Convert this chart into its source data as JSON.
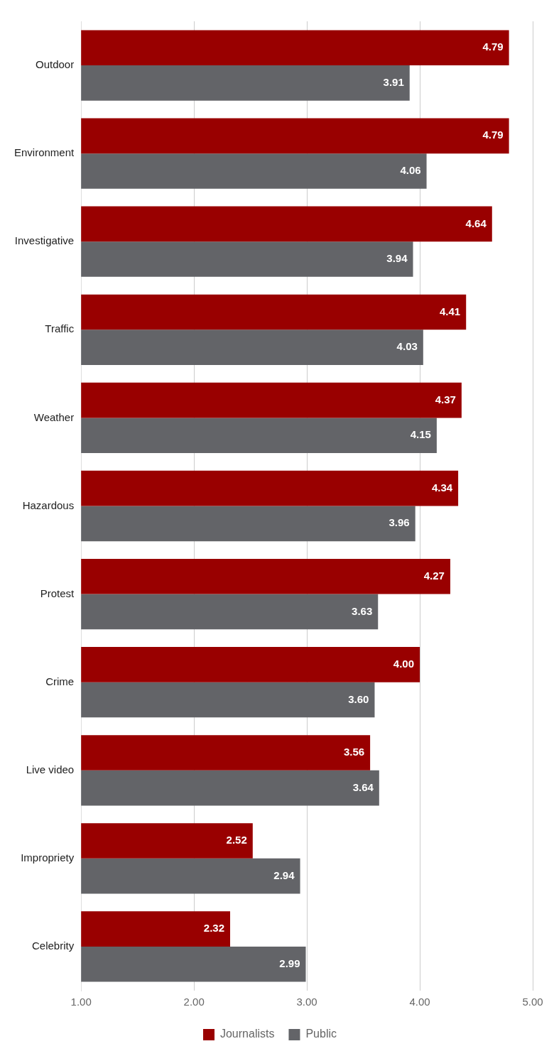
{
  "chart_data": {
    "type": "bar",
    "orientation": "horizontal",
    "categories": [
      "Outdoor",
      "Environment",
      "Investigative",
      "Traffic",
      "Weather",
      "Hazardous",
      "Protest",
      "Crime",
      "Live video",
      "Impropriety",
      "Celebrity"
    ],
    "series": [
      {
        "name": "Journalists",
        "color": "#990000",
        "values": [
          4.79,
          4.79,
          4.64,
          4.41,
          4.37,
          4.34,
          4.27,
          4.0,
          3.56,
          2.52,
          2.32
        ],
        "value_labels": [
          "4.79",
          "4.79",
          "4.64",
          "4.41",
          "4.37",
          "4.34",
          "4.27",
          "4.00",
          "3.56",
          "2.52",
          "2.32"
        ]
      },
      {
        "name": "Public",
        "color": "#636468",
        "values": [
          3.91,
          4.06,
          3.94,
          4.03,
          4.15,
          3.96,
          3.63,
          3.6,
          3.64,
          2.94,
          2.99
        ],
        "value_labels": [
          "3.91",
          "4.06",
          "3.94",
          "4.03",
          "4.15",
          "3.96",
          "3.63",
          "3.60",
          "3.64",
          "2.94",
          "2.99"
        ]
      }
    ],
    "xlim": [
      1,
      5
    ],
    "xticks": [
      {
        "value": 1,
        "label": "1.00"
      },
      {
        "value": 2,
        "label": "2.00"
      },
      {
        "value": 3,
        "label": "3.00"
      },
      {
        "value": 4,
        "label": "4.00"
      },
      {
        "value": 5,
        "label": "5.00"
      }
    ],
    "grid": "x",
    "legend": "bottom"
  }
}
